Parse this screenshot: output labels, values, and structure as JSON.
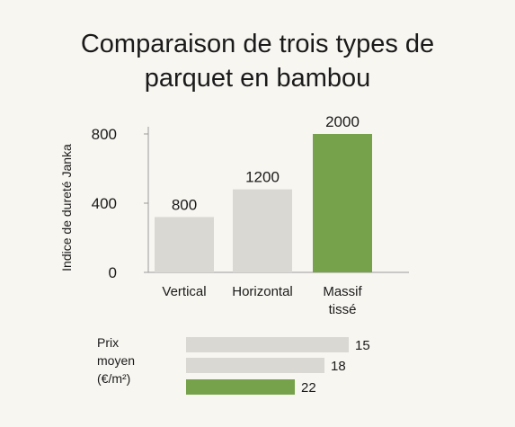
{
  "title_line1": "Comparaison de trois types de",
  "title_line2": "parquet en bambou",
  "colors": {
    "neutral": "#d9d8d2",
    "accent": "#75a24a",
    "axis": "#9a9a9a",
    "background": "#f8f6f1"
  },
  "chart_data": [
    {
      "type": "bar",
      "ylabel": "Indice de dureté Janka",
      "yticks": [
        0,
        400,
        800
      ],
      "ylim": [
        0,
        800
      ],
      "categories": [
        [
          "Vertical"
        ],
        [
          "Horizontal"
        ],
        [
          "Massif",
          "tissé"
        ]
      ],
      "values": [
        800,
        1200,
        2000
      ],
      "value_labels": [
        "800",
        "1200",
        "2000"
      ],
      "highlight_index": 2
    },
    {
      "type": "bar",
      "orientation": "horizontal",
      "label": [
        "Prix",
        "moyen",
        "(€/m²)"
      ],
      "values": [
        15,
        18,
        22
      ],
      "value_labels": [
        "15",
        "18",
        "22"
      ],
      "highlight_index": 2
    }
  ]
}
